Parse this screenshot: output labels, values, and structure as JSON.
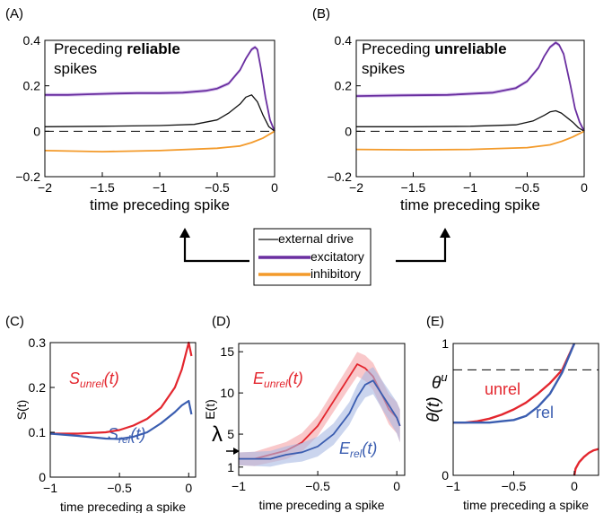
{
  "colors": {
    "external": "#111111",
    "excitatory": "#6a2fa0",
    "excitatory_band": "#c6a8e6",
    "inhibitory": "#f39a2a",
    "unrel": "#e3262e",
    "unrel_band": "#f5a3a6",
    "rel": "#3a5db0",
    "rel_band": "#a9b9e3"
  },
  "legend": {
    "items": [
      {
        "label": "external drive",
        "series": "external"
      },
      {
        "label": "excitatory",
        "series": "excitatory"
      },
      {
        "label": "inhibitory",
        "series": "inhibitory"
      }
    ]
  },
  "chart_data": [
    {
      "panel": "(A)",
      "type": "line",
      "title_prefix": "Preceding ",
      "title_bold": "reliable",
      "title_line2": "spikes",
      "xlabel": "time preceding spike",
      "xlim": [
        -2,
        0
      ],
      "ylim": [
        -0.2,
        0.4
      ],
      "xticks": [
        -2,
        -1.5,
        -1,
        -0.5,
        0
      ],
      "xticklabels": [
        "−2",
        "−1.5",
        "−1",
        "−0.5",
        "0"
      ],
      "yticks": [
        -0.2,
        0,
        0.2,
        0.4
      ],
      "yticklabels": [
        "−0.2",
        "0",
        "0.2",
        "0.4"
      ],
      "zero_line": true,
      "series": [
        {
          "key": "excitatory",
          "x": [
            -2,
            -1.8,
            -1.6,
            -1.4,
            -1.2,
            -1.0,
            -0.8,
            -0.6,
            -0.5,
            -0.4,
            -0.3,
            -0.25,
            -0.2,
            -0.17,
            -0.15,
            -0.12,
            -0.08,
            -0.04,
            0
          ],
          "y": [
            0.16,
            0.16,
            0.163,
            0.166,
            0.168,
            0.168,
            0.17,
            0.178,
            0.188,
            0.21,
            0.27,
            0.32,
            0.36,
            0.37,
            0.36,
            0.28,
            0.15,
            0.05,
            0
          ]
        },
        {
          "key": "external",
          "x": [
            -2,
            -1.5,
            -1.0,
            -0.7,
            -0.5,
            -0.4,
            -0.3,
            -0.25,
            -0.2,
            -0.15,
            -0.1,
            -0.05,
            0
          ],
          "y": [
            0.02,
            0.022,
            0.025,
            0.03,
            0.05,
            0.08,
            0.12,
            0.15,
            0.16,
            0.13,
            0.07,
            0.02,
            0
          ]
        },
        {
          "key": "inhibitory",
          "x": [
            -2,
            -1.5,
            -1.0,
            -0.5,
            -0.3,
            -0.2,
            -0.1,
            0
          ],
          "y": [
            -0.085,
            -0.09,
            -0.085,
            -0.075,
            -0.065,
            -0.05,
            -0.03,
            0
          ]
        }
      ]
    },
    {
      "panel": "(B)",
      "type": "line",
      "title_prefix": "Preceding ",
      "title_bold": "unreliable",
      "title_line2": "spikes",
      "xlabel": "time preceding spike",
      "xlim": [
        -2,
        0
      ],
      "ylim": [
        -0.2,
        0.4
      ],
      "xticks": [
        -2,
        -1.5,
        -1,
        -0.5,
        0
      ],
      "xticklabels": [
        "−2",
        "−1.5",
        "−1",
        "−0.5",
        "0"
      ],
      "yticks": [
        -0.2,
        0,
        0.2,
        0.4
      ],
      "yticklabels": [
        "−0.2",
        "0",
        "0.2",
        "0.4"
      ],
      "zero_line": true,
      "series": [
        {
          "key": "excitatory",
          "x": [
            -2,
            -1.6,
            -1.2,
            -0.8,
            -0.6,
            -0.5,
            -0.4,
            -0.35,
            -0.3,
            -0.25,
            -0.22,
            -0.18,
            -0.12,
            -0.08,
            -0.04,
            0
          ],
          "y": [
            0.155,
            0.158,
            0.16,
            0.17,
            0.19,
            0.22,
            0.28,
            0.33,
            0.37,
            0.39,
            0.38,
            0.34,
            0.2,
            0.1,
            0.04,
            0
          ]
        },
        {
          "key": "external",
          "x": [
            -2,
            -1.5,
            -1.0,
            -0.6,
            -0.45,
            -0.35,
            -0.3,
            -0.25,
            -0.2,
            -0.1,
            -0.05,
            0
          ],
          "y": [
            0.02,
            0.02,
            0.022,
            0.028,
            0.045,
            0.07,
            0.085,
            0.09,
            0.08,
            0.04,
            0.015,
            0
          ]
        },
        {
          "key": "inhibitory",
          "x": [
            -2,
            -1.5,
            -1.0,
            -0.5,
            -0.3,
            -0.2,
            -0.1,
            0
          ],
          "y": [
            -0.08,
            -0.082,
            -0.08,
            -0.072,
            -0.06,
            -0.045,
            -0.025,
            0
          ]
        }
      ]
    },
    {
      "panel": "(C)",
      "type": "line",
      "ylabel": "S(t)",
      "xlabel": "time preceding a spike",
      "xlim": [
        -1,
        0.05
      ],
      "ylim": [
        0,
        0.3
      ],
      "xticks": [
        -1,
        -0.5,
        0
      ],
      "xticklabels": [
        "−1",
        "−0.5",
        "0"
      ],
      "yticks": [
        0,
        0.1,
        0.2,
        0.3
      ],
      "yticklabels": [
        "0",
        "0.1",
        "0.2",
        "0.3"
      ],
      "series": [
        {
          "key": "unrel",
          "label_base": "S",
          "label_sub": "unrel",
          "label_tail": "(t)",
          "x": [
            -1,
            -0.8,
            -0.6,
            -0.5,
            -0.4,
            -0.3,
            -0.2,
            -0.1,
            -0.05,
            0,
            0.02
          ],
          "y": [
            0.097,
            0.097,
            0.1,
            0.105,
            0.115,
            0.13,
            0.155,
            0.2,
            0.24,
            0.3,
            0.27
          ]
        },
        {
          "key": "rel",
          "label_base": "S",
          "label_sub": "rel",
          "label_tail": "(t)",
          "x": [
            -1,
            -0.8,
            -0.6,
            -0.5,
            -0.4,
            -0.3,
            -0.2,
            -0.1,
            -0.05,
            0,
            0.02
          ],
          "y": [
            0.097,
            0.092,
            0.086,
            0.085,
            0.09,
            0.1,
            0.12,
            0.145,
            0.16,
            0.17,
            0.14
          ]
        }
      ]
    },
    {
      "panel": "(D)",
      "type": "line",
      "ylabel": "E(t)",
      "xlabel": "time preceding a spike",
      "xlim": [
        -1,
        0.05
      ],
      "ylim": [
        0,
        16
      ],
      "xticks": [
        -1,
        -0.5,
        0
      ],
      "xticklabels": [
        "−1",
        "−0.5",
        "0"
      ],
      "yticks": [
        1,
        5,
        10,
        15
      ],
      "yticklabels": [
        "1",
        "5",
        "10",
        "15"
      ],
      "marker_label": "λ",
      "series": [
        {
          "key": "unrel",
          "label_base": "E",
          "label_sub": "unrel",
          "label_tail": "(t)",
          "x": [
            -1,
            -0.9,
            -0.8,
            -0.7,
            -0.6,
            -0.5,
            -0.4,
            -0.3,
            -0.25,
            -0.2,
            -0.15,
            -0.1,
            -0.05,
            0,
            0.02
          ],
          "y": [
            2,
            2,
            2.5,
            3,
            4,
            6,
            9,
            12,
            13.5,
            13,
            12,
            10,
            8,
            7,
            6
          ]
        },
        {
          "key": "rel",
          "label_base": "E",
          "label_sub": "rel",
          "label_tail": "(t)",
          "x": [
            -1,
            -0.9,
            -0.8,
            -0.7,
            -0.6,
            -0.5,
            -0.4,
            -0.3,
            -0.25,
            -0.2,
            -0.15,
            -0.1,
            -0.05,
            0,
            0.02
          ],
          "y": [
            2,
            2,
            2,
            2.5,
            2.8,
            3.5,
            5,
            7.5,
            9.5,
            11,
            11.5,
            10,
            8.5,
            7,
            6
          ]
        }
      ]
    },
    {
      "panel": "(E)",
      "type": "line",
      "ylabel": "θ(t)",
      "xlabel": "time preceding a spike",
      "xlim": [
        -1,
        0.2
      ],
      "ylim": [
        0,
        1
      ],
      "xticks": [
        -1,
        -0.5,
        0
      ],
      "xticklabels": [
        "−1",
        "−0.5",
        "0"
      ],
      "yticks": [
        0,
        1
      ],
      "yticklabels": [
        "0",
        "1"
      ],
      "threshold": 0.8,
      "threshold_label_base": "θ",
      "threshold_label_sup": "u",
      "series": [
        {
          "key": "unrel",
          "label": "unrel",
          "x": [
            -1,
            -0.9,
            -0.8,
            -0.7,
            -0.6,
            -0.5,
            -0.4,
            -0.3,
            -0.2,
            -0.1,
            0
          ],
          "y": [
            0.4,
            0.4,
            0.41,
            0.43,
            0.46,
            0.5,
            0.55,
            0.62,
            0.7,
            0.8,
            1.0
          ]
        },
        {
          "key": "rel",
          "label": "rel",
          "x": [
            -1,
            -0.9,
            -0.8,
            -0.7,
            -0.6,
            -0.5,
            -0.4,
            -0.3,
            -0.2,
            -0.1,
            0
          ],
          "y": [
            0.4,
            0.4,
            0.4,
            0.4,
            0.41,
            0.42,
            0.45,
            0.52,
            0.62,
            0.78,
            1.0
          ]
        },
        {
          "key": "unrel",
          "label": "",
          "x": [
            0,
            0.01,
            0.04,
            0.08,
            0.12,
            0.16,
            0.2
          ],
          "y": [
            0,
            0.05,
            0.1,
            0.14,
            0.17,
            0.19,
            0.2
          ]
        }
      ]
    }
  ]
}
